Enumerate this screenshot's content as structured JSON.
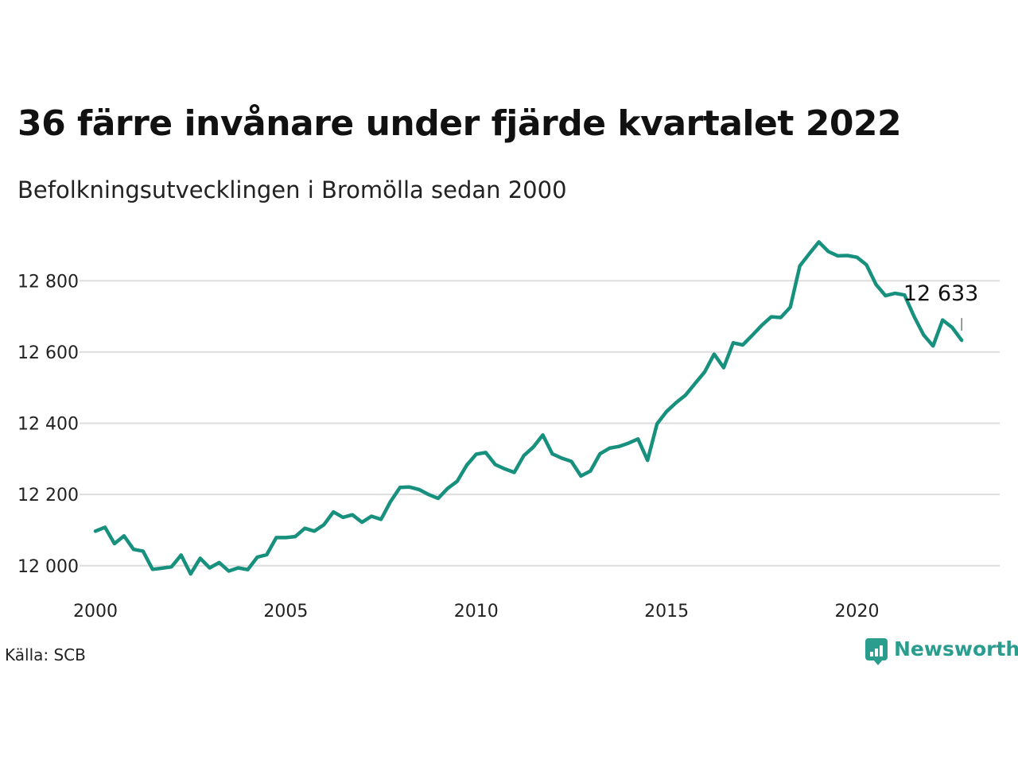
{
  "title": "36 färre invånare under fjärde kvartalet 2022",
  "subtitle": "Befolkningsutvecklingen i Bromölla sedan 2000",
  "source": "Källa: SCB",
  "brand": "Newsworthy",
  "colors": {
    "line": "#18907e",
    "grid": "#dddddd",
    "brand": "#2a9d8f"
  },
  "chart_data": {
    "type": "line",
    "x_start": 2000,
    "x_step": 0.25,
    "xlim": [
      2000,
      2023.75
    ],
    "ylim": [
      11975,
      12910
    ],
    "y_ticks": [
      12000,
      12200,
      12400,
      12600,
      12800
    ],
    "y_tick_labels": [
      "12 000",
      "12 200",
      "12 400",
      "12 600",
      "12 800"
    ],
    "x_ticks": [
      2000,
      2005,
      2010,
      2015,
      2020
    ],
    "x_tick_labels": [
      "2000",
      "2005",
      "2010",
      "2015",
      "2020"
    ],
    "values": [
      12097,
      12108,
      12062,
      12084,
      12046,
      12041,
      11990,
      11993,
      11997,
      12030,
      11977,
      12021,
      11994,
      12009,
      11985,
      11994,
      11989,
      12024,
      12031,
      12079,
      12079,
      12082,
      12105,
      12097,
      12115,
      12151,
      12136,
      12143,
      12122,
      12139,
      12130,
      12180,
      12220,
      12221,
      12214,
      12200,
      12189,
      12217,
      12237,
      12282,
      12313,
      12318,
      12284,
      12272,
      12262,
      12309,
      12333,
      12367,
      12314,
      12302,
      12293,
      12252,
      12266,
      12314,
      12330,
      12335,
      12344,
      12356,
      12296,
      12398,
      12433,
      12458,
      12479,
      12512,
      12544,
      12594,
      12556,
      12626,
      12620,
      12647,
      12675,
      12699,
      12697,
      12726,
      12842,
      12876,
      12909,
      12882,
      12870,
      12871,
      12866,
      12845,
      12790,
      12758,
      12765,
      12760,
      12700,
      12648,
      12617,
      12690,
      12669,
      12633
    ],
    "last_label": "12 633"
  }
}
